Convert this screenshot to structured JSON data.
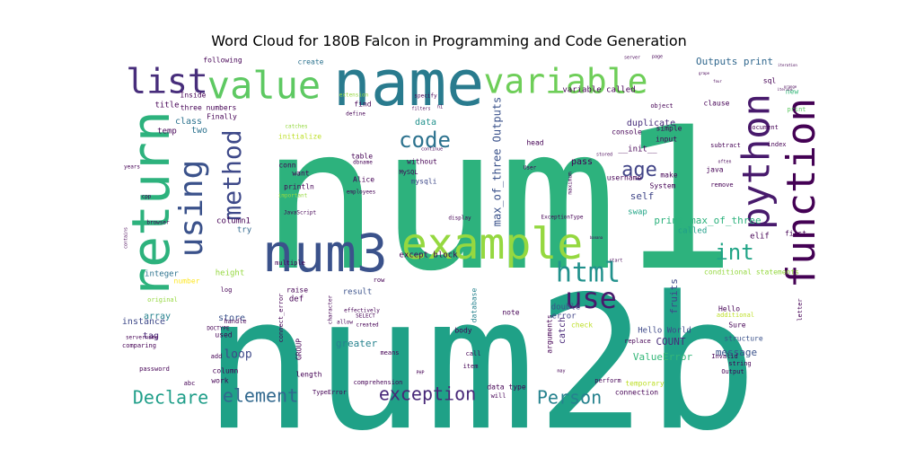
{
  "chart_data": {
    "type": "wordcloud",
    "title": "Word Cloud for 180B Falcon in Programming and Code Generation",
    "background": "#ffffff",
    "colormap": "viridis",
    "words": [
      {
        "text": "num1",
        "weight": 1.0,
        "color": "#2db27d",
        "rot": 0
      },
      {
        "text": "num2b",
        "weight": 0.98,
        "color": "#1fa187",
        "rot": 0
      },
      {
        "text": "name",
        "weight": 0.58,
        "color": "#297b8e",
        "rot": 0
      },
      {
        "text": "return",
        "weight": 0.45,
        "color": "#2db27d",
        "rot": 90
      },
      {
        "text": "num3",
        "weight": 0.45,
        "color": "#3b528b",
        "rot": 0
      },
      {
        "text": "example",
        "weight": 0.4,
        "color": "#95d840",
        "rot": 0
      },
      {
        "text": "function",
        "weight": 0.4,
        "color": "#440154",
        "rot": 90
      },
      {
        "text": "python",
        "weight": 0.38,
        "color": "#481a6c",
        "rot": 90
      },
      {
        "text": "value",
        "weight": 0.36,
        "color": "#5ec962",
        "rot": 0
      },
      {
        "text": "variable",
        "weight": 0.34,
        "color": "#6ece58",
        "rot": 0
      },
      {
        "text": "list",
        "weight": 0.33,
        "color": "#472d7b",
        "rot": 0
      },
      {
        "text": "using",
        "weight": 0.3,
        "color": "#3b528b",
        "rot": 90
      },
      {
        "text": "use",
        "weight": 0.26,
        "color": "#481a6c",
        "rot": 0
      },
      {
        "text": "html",
        "weight": 0.25,
        "color": "#21918c",
        "rot": 0
      },
      {
        "text": "method",
        "weight": 0.25,
        "color": "#3e4989",
        "rot": 90
      },
      {
        "text": "code",
        "weight": 0.2,
        "color": "#2c728e",
        "rot": 0
      },
      {
        "text": "int",
        "weight": 0.2,
        "color": "#20a486",
        "rot": 0
      },
      {
        "text": "age",
        "weight": 0.18,
        "color": "#414487",
        "rot": 0
      },
      {
        "text": "exception",
        "weight": 0.15,
        "color": "#482878",
        "rot": 0
      },
      {
        "text": "Person",
        "weight": 0.15,
        "color": "#26828e",
        "rot": 0
      },
      {
        "text": "Declare",
        "weight": 0.15,
        "color": "#1f9e89",
        "rot": 0
      },
      {
        "text": "element",
        "weight": 0.15,
        "color": "#31688e",
        "rot": 0
      },
      {
        "text": "max_of_three Outputs",
        "weight": 0.09,
        "color": "#3b528b",
        "rot": 90
      },
      {
        "text": "print max_of_three",
        "weight": 0.09,
        "color": "#2db27d",
        "rot": 0
      },
      {
        "text": "Outputs print",
        "weight": 0.09,
        "color": "#31688e",
        "rot": 0
      },
      {
        "text": "loop",
        "weight": 0.1,
        "color": "#3e4989",
        "rot": 0
      },
      {
        "text": "message",
        "weight": 0.08,
        "color": "#3b528b",
        "rot": 0
      },
      {
        "text": "ValueError",
        "weight": 0.08,
        "color": "#35b779",
        "rot": 0
      },
      {
        "text": "COUNT",
        "weight": 0.08,
        "color": "#472d7b",
        "rot": 0
      },
      {
        "text": "greater",
        "weight": 0.08,
        "color": "#26828e",
        "rot": 0
      },
      {
        "text": "fruits",
        "weight": 0.08,
        "color": "#3e4989",
        "rot": 90
      },
      {
        "text": "self",
        "weight": 0.08,
        "color": "#404688",
        "rot": 0
      },
      {
        "text": "pass",
        "weight": 0.07,
        "color": "#440154",
        "rot": 0
      },
      {
        "text": "data",
        "weight": 0.07,
        "color": "#21918c",
        "rot": 0
      },
      {
        "text": "class",
        "weight": 0.07,
        "color": "#2c728e",
        "rot": 0
      },
      {
        "text": "two",
        "weight": 0.06,
        "color": "#2c728e",
        "rot": 0
      },
      {
        "text": "array",
        "weight": 0.07,
        "color": "#26828e",
        "rot": 0
      },
      {
        "text": "store",
        "weight": 0.06,
        "color": "#3b528b",
        "rot": 0
      },
      {
        "text": "tag",
        "weight": 0.07,
        "color": "#482878",
        "rot": 0
      },
      {
        "text": "instance",
        "weight": 0.07,
        "color": "#3e4989",
        "rot": 0
      },
      {
        "text": "duplicate",
        "weight": 0.07,
        "color": "#472d7b",
        "rot": 0
      },
      {
        "text": "catch",
        "weight": 0.07,
        "color": "#482878",
        "rot": 90
      },
      {
        "text": "double",
        "weight": 0.06,
        "color": "#3b528b",
        "rot": 0
      },
      {
        "text": "error",
        "weight": 0.06,
        "color": "#414487",
        "rot": 0
      },
      {
        "text": "Hello World",
        "weight": 0.06,
        "color": "#3e4989",
        "rot": 0
      },
      {
        "text": "elif",
        "weight": 0.06,
        "color": "#440154",
        "rot": 0
      },
      {
        "text": "try",
        "weight": 0.06,
        "color": "#31688e",
        "rot": 0
      },
      {
        "text": "swap",
        "weight": 0.06,
        "color": "#20a486",
        "rot": 0
      },
      {
        "text": "called",
        "weight": 0.06,
        "color": "#1f9e89",
        "rot": 0
      },
      {
        "text": "column1",
        "weight": 0.06,
        "color": "#440154",
        "rot": 0
      },
      {
        "text": "temp",
        "weight": 0.05,
        "color": "#440154",
        "rot": 0
      },
      {
        "text": "title",
        "weight": 0.05,
        "color": "#440154",
        "rot": 0
      },
      {
        "text": "variable called",
        "weight": 0.06,
        "color": "#440154",
        "rot": 0
      },
      {
        "text": "except block",
        "weight": 0.06,
        "color": "#440154",
        "rot": 0
      },
      {
        "text": "result",
        "weight": 0.05,
        "color": "#3b528b",
        "rot": 0
      },
      {
        "text": "height",
        "weight": 0.05,
        "color": "#95d840",
        "rot": 0
      },
      {
        "text": "integer",
        "weight": 0.05,
        "color": "#2c728e",
        "rot": 0
      },
      {
        "text": "conditional statements",
        "weight": 0.05,
        "color": "#95d840",
        "rot": 0
      },
      {
        "text": "structure",
        "weight": 0.05,
        "color": "#3b528b",
        "rot": 0
      },
      {
        "text": "three numbers",
        "weight": 0.05,
        "color": "#440154",
        "rot": 0
      },
      {
        "text": "Finally",
        "weight": 0.04,
        "color": "#440154",
        "rot": 0
      },
      {
        "text": "Inside",
        "weight": 0.04,
        "color": "#440154",
        "rot": 0
      },
      {
        "text": "following",
        "weight": 0.04,
        "color": "#440154",
        "rot": 0
      },
      {
        "text": "create",
        "weight": 0.04,
        "color": "#2c728e",
        "rot": 0
      },
      {
        "text": "initialize",
        "weight": 0.05,
        "color": "#bddf26",
        "rot": 0
      },
      {
        "text": "conn",
        "weight": 0.05,
        "color": "#440154",
        "rot": 0
      },
      {
        "text": "want",
        "weight": 0.05,
        "color": "#440154",
        "rot": 0
      },
      {
        "text": "println",
        "weight": 0.05,
        "color": "#440154",
        "rot": 0
      },
      {
        "text": "Alice",
        "weight": 0.05,
        "color": "#440154",
        "rot": 0
      },
      {
        "text": "mysqli",
        "weight": 0.05,
        "color": "#3e4989",
        "rot": 0
      },
      {
        "text": "without",
        "weight": 0.04,
        "color": "#440154",
        "rot": 0
      },
      {
        "text": "MySQL",
        "weight": 0.04,
        "color": "#440154",
        "rot": 0
      },
      {
        "text": "find",
        "weight": 0.05,
        "color": "#440154",
        "rot": 0
      },
      {
        "text": "table",
        "weight": 0.04,
        "color": "#440154",
        "rot": 0
      },
      {
        "text": "head",
        "weight": 0.04,
        "color": "#440154",
        "rot": 0
      },
      {
        "text": "console",
        "weight": 0.04,
        "color": "#440154",
        "rot": 0
      },
      {
        "text": "simple",
        "weight": 0.04,
        "color": "#440154",
        "rot": 0
      },
      {
        "text": "input",
        "weight": 0.04,
        "color": "#440154",
        "rot": 0
      },
      {
        "text": "__init__",
        "weight": 0.05,
        "color": "#440154",
        "rot": 0
      },
      {
        "text": "username",
        "weight": 0.04,
        "color": "#440154",
        "rot": 0
      },
      {
        "text": "make",
        "weight": 0.04,
        "color": "#440154",
        "rot": 0
      },
      {
        "text": "System",
        "weight": 0.04,
        "color": "#440154",
        "rot": 0
      },
      {
        "text": "java",
        "weight": 0.04,
        "color": "#440154",
        "rot": 0
      },
      {
        "text": "remove",
        "weight": 0.03,
        "color": "#440154",
        "rot": 0
      },
      {
        "text": "subtract",
        "weight": 0.03,
        "color": "#440154",
        "rot": 0
      },
      {
        "text": "index",
        "weight": 0.03,
        "color": "#440154",
        "rot": 0
      },
      {
        "text": "sql",
        "weight": 0.04,
        "color": "#440154",
        "rot": 0
      },
      {
        "text": "object",
        "weight": 0.03,
        "color": "#440154",
        "rot": 0
      },
      {
        "text": "clause",
        "weight": 0.04,
        "color": "#440154",
        "rot": 0
      },
      {
        "text": "document",
        "weight": 0.03,
        "color": "#440154",
        "rot": 0
      },
      {
        "text": "new",
        "weight": 0.04,
        "color": "#35b779",
        "rot": 0
      },
      {
        "text": "print",
        "weight": 0.03,
        "color": "#5ec962",
        "rot": 0
      },
      {
        "text": "first",
        "weight": 0.04,
        "color": "#440154",
        "rot": 0
      },
      {
        "text": "letter",
        "weight": 0.03,
        "color": "#440154",
        "rot": 90
      },
      {
        "text": "Hello",
        "weight": 0.04,
        "color": "#440154",
        "rot": 0
      },
      {
        "text": "additional",
        "weight": 0.03,
        "color": "#bddf26",
        "rot": 0
      },
      {
        "text": "Sure",
        "weight": 0.04,
        "color": "#440154",
        "rot": 0
      },
      {
        "text": "Invalid",
        "weight": 0.03,
        "color": "#440154",
        "rot": 0
      },
      {
        "text": "string",
        "weight": 0.03,
        "color": "#440154",
        "rot": 0
      },
      {
        "text": "Output",
        "weight": 0.03,
        "color": "#440154",
        "rot": 0
      },
      {
        "text": "temporary",
        "weight": 0.04,
        "color": "#bddf26",
        "rot": 0
      },
      {
        "text": "connection",
        "weight": 0.04,
        "color": "#440154",
        "rot": 0
      },
      {
        "text": "perform",
        "weight": 0.03,
        "color": "#440154",
        "rot": 0
      },
      {
        "text": "replace",
        "weight": 0.03,
        "color": "#440154",
        "rot": 0
      },
      {
        "text": "check",
        "weight": 0.04,
        "color": "#bddf26",
        "rot": 0
      },
      {
        "text": "note",
        "weight": 0.04,
        "color": "#440154",
        "rot": 0
      },
      {
        "text": "arguments",
        "weight": 0.04,
        "color": "#440154",
        "rot": 90
      },
      {
        "text": "database",
        "weight": 0.04,
        "color": "#26828e",
        "rot": 90
      },
      {
        "text": "body",
        "weight": 0.04,
        "color": "#440154",
        "rot": 0
      },
      {
        "text": "call",
        "weight": 0.03,
        "color": "#440154",
        "rot": 0
      },
      {
        "text": "item",
        "weight": 0.03,
        "color": "#440154",
        "rot": 0
      },
      {
        "text": "data type",
        "weight": 0.04,
        "color": "#440154",
        "rot": 0
      },
      {
        "text": "will",
        "weight": 0.03,
        "color": "#440154",
        "rot": 0
      },
      {
        "text": "means",
        "weight": 0.03,
        "color": "#440154",
        "rot": 0
      },
      {
        "text": "comprehension",
        "weight": 0.03,
        "color": "#440154",
        "rot": 0
      },
      {
        "text": "TypeError",
        "weight": 0.03,
        "color": "#440154",
        "rot": 0
      },
      {
        "text": "length",
        "weight": 0.04,
        "color": "#440154",
        "rot": 0
      },
      {
        "text": "GROUP",
        "weight": 0.04,
        "color": "#440154",
        "rot": 90
      },
      {
        "text": "column",
        "weight": 0.04,
        "color": "#440154",
        "rot": 0
      },
      {
        "text": "work",
        "weight": 0.04,
        "color": "#440154",
        "rot": 0
      },
      {
        "text": "abc",
        "weight": 0.03,
        "color": "#440154",
        "rot": 0
      },
      {
        "text": "add",
        "weight": 0.03,
        "color": "#440154",
        "rot": 0
      },
      {
        "text": "password",
        "weight": 0.03,
        "color": "#440154",
        "rot": 0
      },
      {
        "text": "comparing",
        "weight": 0.03,
        "color": "#440154",
        "rot": 0
      },
      {
        "text": "servername",
        "weight": 0.03,
        "color": "#440154",
        "rot": 0
      },
      {
        "text": "original",
        "weight": 0.03,
        "color": "#95d840",
        "rot": 0
      },
      {
        "text": "number",
        "weight": 0.03,
        "color": "#fde725",
        "rot": 0
      },
      {
        "text": "multiple",
        "weight": 0.03,
        "color": "#440154",
        "rot": 0
      },
      {
        "text": "log",
        "weight": 0.03,
        "color": "#440154",
        "rot": 0
      },
      {
        "text": "used",
        "weight": 0.04,
        "color": "#440154",
        "rot": 0
      },
      {
        "text": "handle",
        "weight": 0.03,
        "color": "#440154",
        "rot": 0
      },
      {
        "text": "DOCTYPE",
        "weight": 0.03,
        "color": "#440154",
        "rot": 0
      },
      {
        "text": "raise",
        "weight": 0.04,
        "color": "#440154",
        "rot": 0
      },
      {
        "text": "def",
        "weight": 0.04,
        "color": "#440154",
        "rot": 0
      },
      {
        "text": "SELECT",
        "weight": 0.03,
        "color": "#440154",
        "rot": 0
      },
      {
        "text": "row",
        "weight": 0.03,
        "color": "#440154",
        "rot": 0
      },
      {
        "text": "effectively",
        "weight": 0.03,
        "color": "#440154",
        "rot": 0
      },
      {
        "text": "allow",
        "weight": 0.03,
        "color": "#440154",
        "rot": 0
      },
      {
        "text": "connect_error",
        "weight": 0.03,
        "color": "#440154",
        "rot": 90
      },
      {
        "text": "character",
        "weight": 0.03,
        "color": "#440154",
        "rot": 90
      },
      {
        "text": "created",
        "weight": 0.03,
        "color": "#440154",
        "rot": 0
      },
      {
        "text": "JavaScript",
        "weight": 0.03,
        "color": "#440154",
        "rot": 0
      },
      {
        "text": "browser",
        "weight": 0.03,
        "color": "#440154",
        "rot": 0
      },
      {
        "text": "employees",
        "weight": 0.03,
        "color": "#440154",
        "rot": 0
      },
      {
        "text": "important",
        "weight": 0.03,
        "color": "#95d840",
        "rot": 0
      },
      {
        "text": "define",
        "weight": 0.03,
        "color": "#440154",
        "rot": 0
      },
      {
        "text": "catches",
        "weight": 0.03,
        "color": "#95d840",
        "rot": 0
      },
      {
        "text": "specify",
        "weight": 0.03,
        "color": "#440154",
        "rot": 0
      },
      {
        "text": "extension",
        "weight": 0.03,
        "color": "#95d840",
        "rot": 0
      },
      {
        "text": "dbname",
        "weight": 0.03,
        "color": "#440154",
        "rot": 0
      },
      {
        "text": "display",
        "weight": 0.03,
        "color": "#440154",
        "rot": 0
      },
      {
        "text": "ExceptionType",
        "weight": 0.03,
        "color": "#440154",
        "rot": 0
      },
      {
        "text": "maximum",
        "weight": 0.03,
        "color": "#440154",
        "rot": 90
      },
      {
        "text": "User",
        "weight": 0.03,
        "color": "#440154",
        "rot": 0
      },
      {
        "text": "cpp",
        "weight": 0.03,
        "color": "#440154",
        "rot": 0
      },
      {
        "text": "years",
        "weight": 0.03,
        "color": "#440154",
        "rot": 0
      },
      {
        "text": "contains",
        "weight": 0.03,
        "color": "#440154",
        "rot": 90
      },
      {
        "text": "server",
        "weight": 0.03,
        "color": "#440154",
        "rot": 0
      },
      {
        "text": "page",
        "weight": 0.03,
        "color": "#440154",
        "rot": 0
      },
      {
        "text": "often",
        "weight": 0.03,
        "color": "#440154",
        "rot": 0
      },
      {
        "text": "start",
        "weight": 0.03,
        "color": "#440154",
        "rot": 0
      },
      {
        "text": "stored",
        "weight": 0.03,
        "color": "#440154",
        "rot": 0
      },
      {
        "text": "PHP",
        "weight": 0.03,
        "color": "#440154",
        "rot": 0
      },
      {
        "text": "may",
        "weight": 0.03,
        "color": "#440154",
        "rot": 0
      },
      {
        "text": "continue",
        "weight": 0.03,
        "color": "#440154",
        "rot": 0
      },
      {
        "text": "filters",
        "weight": 0.03,
        "color": "#440154",
        "rot": 0
      },
      {
        "text": "h1",
        "weight": 0.03,
        "color": "#440154",
        "rot": 0
      },
      {
        "text": "iteration",
        "weight": 0.02,
        "color": "#440154",
        "rot": 0
      },
      {
        "text": "banana",
        "weight": 0.02,
        "color": "#440154",
        "rot": 0
      },
      {
        "text": "orange",
        "weight": 0.02,
        "color": "#440154",
        "rot": 0
      },
      {
        "text": "grape",
        "weight": 0.02,
        "color": "#440154",
        "rot": 0
      },
      {
        "text": "four",
        "weight": 0.02,
        "color": "#440154",
        "rot": 0
      },
      {
        "text": "iterate",
        "weight": 0.02,
        "color": "#440154",
        "rot": 0
      }
    ]
  }
}
